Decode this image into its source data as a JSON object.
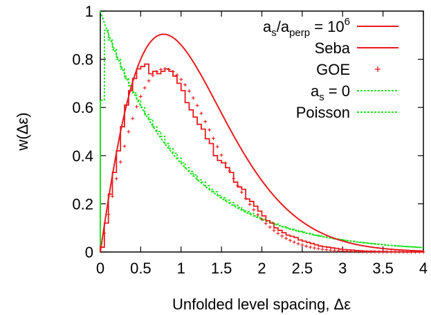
{
  "chart_data": {
    "type": "line",
    "title": "",
    "xlabel": "Unfolded level spacing, Δε",
    "ylabel": "w(Δε)",
    "xlim": [
      0,
      4
    ],
    "ylim": [
      0,
      1
    ],
    "xticks": [
      "0",
      "0.5",
      "1",
      "1.5",
      "2",
      "2.5",
      "3",
      "3.5",
      "4"
    ],
    "yticks": [
      "0",
      "0.2",
      "0.4",
      "0.6",
      "0.8",
      "1"
    ],
    "grid": false,
    "legend_position": "top-right",
    "colors": {
      "red": "#e8191c",
      "green": "#1fe01f"
    },
    "legend": [
      {
        "label_main": "a",
        "label_sub1": "s",
        "label_mid": "/a",
        "label_sub2": "perp",
        "label_eq": " = 10",
        "label_sup": "6",
        "style": "step",
        "color": "#e8191c"
      },
      {
        "label": "Seba",
        "style": "line",
        "color": "#e8191c"
      },
      {
        "label": "GOE",
        "style": "points",
        "color": "#e8191c"
      },
      {
        "label_main": "a",
        "label_sub": "s",
        "label_eq": " = 0",
        "style": "step-dashed",
        "color": "#1fe01f"
      },
      {
        "label": "Poisson",
        "style": "dashed",
        "color": "#1fe01f"
      }
    ],
    "series": [
      {
        "name": "as/aperp = 10^6",
        "style": "step",
        "bin_width": 0.05,
        "x_start": 0,
        "values": [
          0.02,
          0.12,
          0.24,
          0.33,
          0.42,
          0.52,
          0.61,
          0.67,
          0.72,
          0.76,
          0.77,
          0.78,
          0.74,
          0.75,
          0.74,
          0.75,
          0.76,
          0.75,
          0.73,
          0.7,
          0.67,
          0.62,
          0.59,
          0.56,
          0.53,
          0.51,
          0.47,
          0.45,
          0.4,
          0.38,
          0.37,
          0.35,
          0.33,
          0.29,
          0.27,
          0.26,
          0.22,
          0.21,
          0.19,
          0.17,
          0.15,
          0.13,
          0.12,
          0.1,
          0.09,
          0.08,
          0.07,
          0.065,
          0.06,
          0.05,
          0.045,
          0.04,
          0.035,
          0.03,
          0.025,
          0.022,
          0.02,
          0.017,
          0.015,
          0.012,
          0.01,
          0.009,
          0.008,
          0.006,
          0.005,
          0.004,
          0.003,
          0.003,
          0.002,
          0.002,
          0.002,
          0.001,
          0.001,
          0.001,
          0.001,
          0.0,
          0.0,
          0.0,
          0.0,
          0.0
        ]
      },
      {
        "name": "Seba",
        "style": "line",
        "x_max": 4
      },
      {
        "name": "GOE",
        "style": "points",
        "x_step": 0.05,
        "x_max": 4
      },
      {
        "name": "as = 0",
        "style": "step-dashed",
        "bin_width": 0.05,
        "x_start": 0,
        "values": [
          0.63,
          0.92,
          0.88,
          0.84,
          0.8,
          0.76,
          0.72,
          0.69,
          0.66,
          0.63,
          0.6,
          0.57,
          0.55,
          0.52,
          0.5,
          0.48,
          0.45,
          0.43,
          0.41,
          0.39,
          0.37,
          0.35,
          0.335,
          0.32,
          0.3,
          0.29,
          0.275,
          0.26,
          0.25,
          0.235,
          0.225,
          0.215,
          0.205,
          0.195,
          0.185,
          0.175,
          0.167,
          0.16,
          0.15,
          0.143,
          0.136,
          0.13,
          0.123,
          0.117,
          0.11,
          0.105,
          0.1,
          0.095,
          0.09,
          0.086,
          0.082,
          0.078,
          0.074,
          0.07,
          0.067,
          0.063,
          0.06,
          0.057,
          0.054,
          0.052,
          0.049,
          0.047,
          0.045,
          0.042,
          0.04,
          0.038,
          0.036,
          0.035,
          0.033,
          0.031,
          0.03,
          0.028,
          0.027,
          0.025,
          0.024,
          0.023,
          0.022,
          0.021,
          0.02,
          0.019
        ]
      },
      {
        "name": "Poisson",
        "style": "dashed",
        "x_max": 4
      }
    ]
  }
}
